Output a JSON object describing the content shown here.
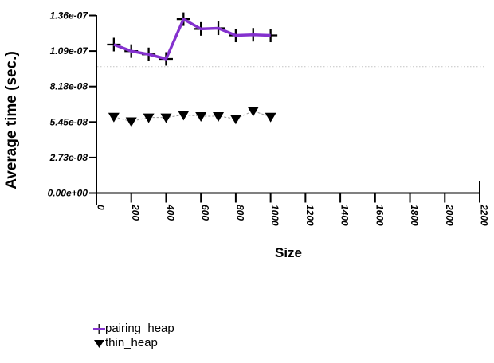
{
  "chart_data": {
    "type": "line",
    "title": "",
    "xlabel": "Size",
    "ylabel": "Average time (sec.)",
    "xlim": [
      0,
      2200
    ],
    "ylim": [
      0,
      1.363e-07
    ],
    "grid": "off",
    "x_ticks": [
      0,
      200,
      400,
      600,
      800,
      1000,
      1200,
      1400,
      1600,
      1800,
      2000,
      2200
    ],
    "y_ticks": [
      {
        "value": 0,
        "label": "0.00e+00"
      },
      {
        "value": 2.726e-08,
        "label": "2.73e-08"
      },
      {
        "value": 5.452e-08,
        "label": "5.45e-08"
      },
      {
        "value": 8.178e-08,
        "label": "8.18e-08"
      },
      {
        "value": 1.0904e-07,
        "label": "1.09e-07"
      },
      {
        "value": 1.363e-07,
        "label": "1.36e-07"
      }
    ],
    "reference_line": {
      "value": 9.7e-08,
      "style": "dotted",
      "color": "#c4c4c4"
    },
    "x": [
      100,
      200,
      300,
      400,
      500,
      600,
      700,
      800,
      900,
      1000
    ],
    "series": [
      {
        "name": "pairing_heap",
        "marker": "plus",
        "marker_color": "#000000",
        "line_color": "#8431ce",
        "line_width": 3.5,
        "line_style": "solid",
        "values": [
          1.14e-07,
          1.09e-07,
          1.065e-07,
          1.03e-07,
          1.335e-07,
          1.26e-07,
          1.265e-07,
          1.21e-07,
          1.215e-07,
          1.21e-07
        ]
      },
      {
        "name": "thin_heap",
        "marker": "triangle-down",
        "marker_color": "#000000",
        "line_color": "#999999",
        "line_width": 1,
        "line_style": "dashed",
        "values": [
          5.85e-08,
          5.5e-08,
          5.8e-08,
          5.8e-08,
          6e-08,
          5.9e-08,
          5.9e-08,
          5.7e-08,
          6.3e-08,
          5.85e-08
        ]
      }
    ],
    "legend": {
      "position": "bottom-left",
      "entries": [
        "pairing_heap",
        "thin_heap"
      ]
    }
  }
}
